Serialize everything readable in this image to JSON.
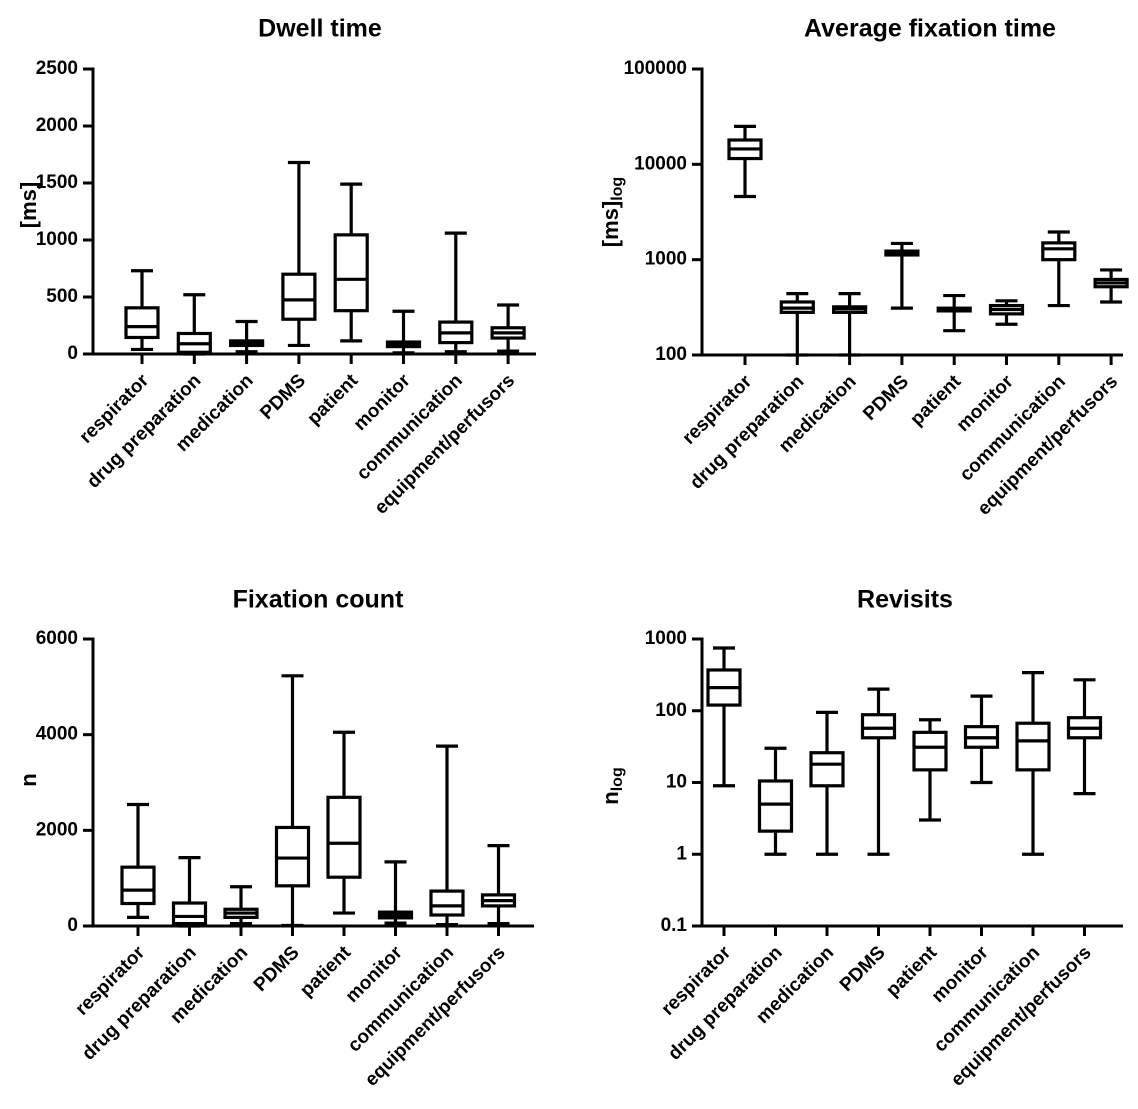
{
  "chart_data": [
    {
      "type": "box",
      "title": "Dwell time",
      "ylabel": "[ms]",
      "ylabel_sub": "",
      "yscale": "linear",
      "ylim": [
        0,
        2500
      ],
      "yticks": [
        0,
        500,
        1000,
        1500,
        2000,
        2500
      ],
      "ytick_labels": [
        "0",
        "500",
        "1000",
        "1500",
        "2000",
        "2500"
      ],
      "categories": [
        "respirator",
        "drug preparation",
        "medication",
        "PDMS",
        "patient",
        "monitor",
        "communication",
        "equipment/perfusors"
      ],
      "boxes": [
        {
          "min": 40,
          "q1": 145,
          "median": 240,
          "q3": 405,
          "max": 730
        },
        {
          "min": 0,
          "q1": 15,
          "median": 90,
          "q3": 180,
          "max": 520
        },
        {
          "min": 20,
          "q1": 75,
          "median": 100,
          "q3": 115,
          "max": 285
        },
        {
          "min": 75,
          "q1": 305,
          "median": 475,
          "q3": 700,
          "max": 1680
        },
        {
          "min": 115,
          "q1": 380,
          "median": 655,
          "q3": 1045,
          "max": 1490
        },
        {
          "min": 10,
          "q1": 65,
          "median": 85,
          "q3": 105,
          "max": 375
        },
        {
          "min": 20,
          "q1": 100,
          "median": 185,
          "q3": 280,
          "max": 1060
        },
        {
          "min": 25,
          "q1": 140,
          "median": 185,
          "q3": 230,
          "max": 430
        }
      ]
    },
    {
      "type": "box",
      "title": "Average fixation time",
      "ylabel": "[ms]",
      "ylabel_sub": "log",
      "yscale": "log",
      "ylim": [
        100,
        100000
      ],
      "yticks": [
        100,
        1000,
        10000,
        100000
      ],
      "ytick_labels": [
        "100",
        "1000",
        "10000",
        "100000"
      ],
      "categories": [
        "respirator",
        "drug preparation",
        "medication",
        "PDMS",
        "patient",
        "monitor",
        "communication",
        "equipment/perfusors"
      ],
      "boxes": [
        {
          "min": 4600,
          "q1": 11500,
          "median": 14500,
          "q3": 18000,
          "max": 25000
        },
        {
          "min": 100,
          "q1": 280,
          "median": 310,
          "q3": 360,
          "max": 440
        },
        {
          "min": 100,
          "q1": 280,
          "median": 305,
          "q3": 320,
          "max": 440
        },
        {
          "min": 310,
          "q1": 1120,
          "median": 1170,
          "q3": 1230,
          "max": 1480
        },
        {
          "min": 180,
          "q1": 290,
          "median": 300,
          "q3": 310,
          "max": 420
        },
        {
          "min": 210,
          "q1": 270,
          "median": 300,
          "q3": 330,
          "max": 370
        },
        {
          "min": 330,
          "q1": 1000,
          "median": 1300,
          "q3": 1500,
          "max": 1950
        },
        {
          "min": 360,
          "q1": 520,
          "median": 570,
          "q3": 620,
          "max": 780
        }
      ]
    },
    {
      "type": "box",
      "title": "Fixation count",
      "ylabel": "n",
      "ylabel_sub": "",
      "yscale": "linear",
      "ylim": [
        0,
        6000
      ],
      "yticks": [
        0,
        2000,
        4000,
        6000
      ],
      "ytick_labels": [
        "0",
        "2000",
        "4000",
        "6000"
      ],
      "categories": [
        "respirator",
        "drug preparation",
        "medication",
        "PDMS",
        "patient",
        "monitor",
        "communication",
        "equipment/perfusors"
      ],
      "boxes": [
        {
          "min": 180,
          "q1": 470,
          "median": 750,
          "q3": 1230,
          "max": 2540
        },
        {
          "min": 0,
          "q1": 50,
          "median": 200,
          "q3": 480,
          "max": 1430
        },
        {
          "min": 50,
          "q1": 180,
          "median": 270,
          "q3": 350,
          "max": 820
        },
        {
          "min": 10,
          "q1": 840,
          "median": 1420,
          "q3": 2060,
          "max": 5230
        },
        {
          "min": 270,
          "q1": 1020,
          "median": 1730,
          "q3": 2690,
          "max": 4050
        },
        {
          "min": 60,
          "q1": 170,
          "median": 230,
          "q3": 290,
          "max": 1340
        },
        {
          "min": 30,
          "q1": 230,
          "median": 420,
          "q3": 730,
          "max": 3760
        },
        {
          "min": 50,
          "q1": 420,
          "median": 530,
          "q3": 650,
          "max": 1680
        }
      ]
    },
    {
      "type": "box",
      "title": "Revisits",
      "ylabel": "n",
      "ylabel_sub": "log",
      "yscale": "log",
      "ylim": [
        0.1,
        1000
      ],
      "yticks": [
        0.1,
        1,
        10,
        100,
        1000
      ],
      "ytick_labels": [
        "0.1",
        "1",
        "10",
        "100",
        "1000"
      ],
      "categories": [
        "respirator",
        "drug preparation",
        "medication",
        "PDMS",
        "patient",
        "monitor",
        "communication",
        "equipment/perfusors"
      ],
      "boxes": [
        {
          "min": 9,
          "q1": 120,
          "median": 210,
          "q3": 370,
          "max": 750
        },
        {
          "min": 1,
          "q1": 2.1,
          "median": 5,
          "q3": 10.5,
          "max": 30
        },
        {
          "min": 1,
          "q1": 9,
          "median": 18,
          "q3": 26,
          "max": 95
        },
        {
          "min": 1,
          "q1": 42,
          "median": 57,
          "q3": 88,
          "max": 200
        },
        {
          "min": 3,
          "q1": 15,
          "median": 31,
          "q3": 50,
          "max": 75
        },
        {
          "min": 10,
          "q1": 31,
          "median": 42,
          "q3": 60,
          "max": 160
        },
        {
          "min": 1,
          "q1": 15,
          "median": 38,
          "q3": 67,
          "max": 340
        },
        {
          "min": 7,
          "q1": 42,
          "median": 57,
          "q3": 80,
          "max": 270
        }
      ]
    }
  ]
}
